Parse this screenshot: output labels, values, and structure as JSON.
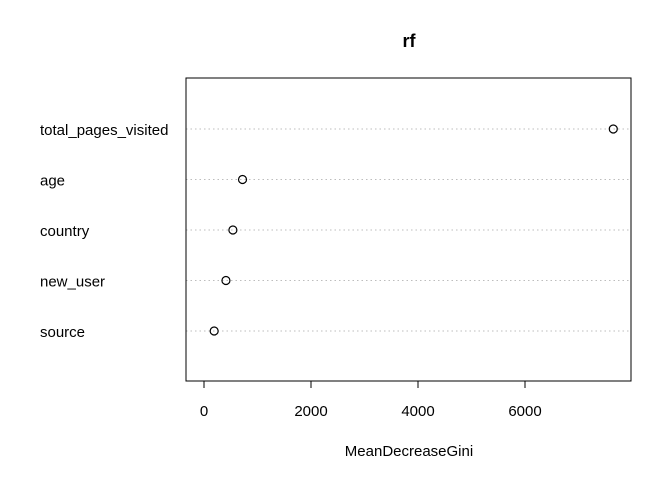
{
  "chart_data": {
    "type": "scatter",
    "title": "rf",
    "xlabel": "MeanDecreaseGini",
    "ylabel": "",
    "categories": [
      "total_pages_visited",
      "age",
      "country",
      "new_user",
      "source"
    ],
    "values": [
      7650,
      720,
      540,
      410,
      190
    ],
    "xlim": [
      0,
      7800
    ],
    "xticks": [
      0,
      2000,
      4000,
      6000
    ],
    "grid": "dotted horizontal guide lines per category"
  }
}
